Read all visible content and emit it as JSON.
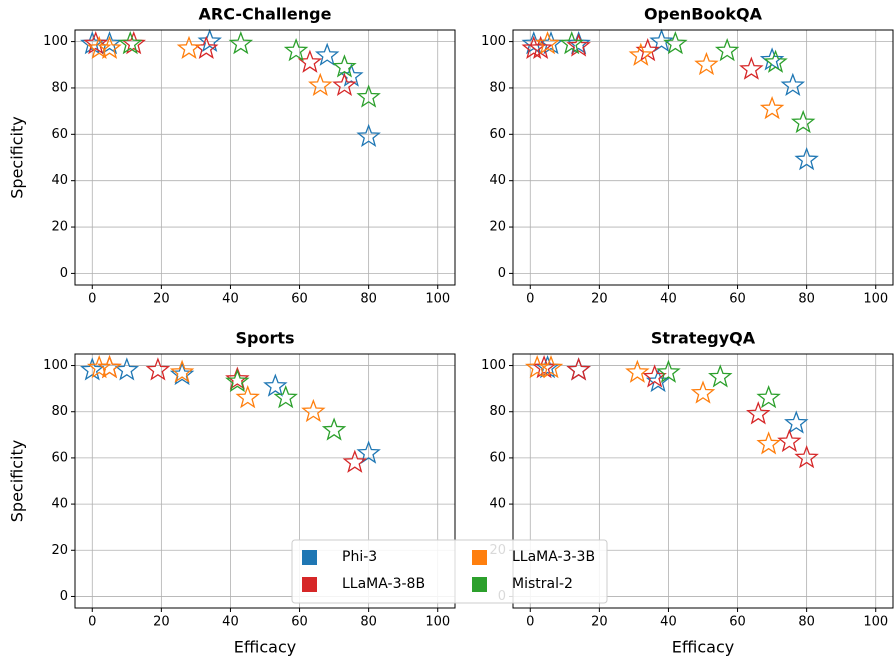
{
  "chart_data": [
    {
      "type": "scatter",
      "title": "ARC-Challenge",
      "ylabel": "Specificity",
      "legend": "lower center",
      "xlim": [
        -5,
        105
      ],
      "ylim": [
        -5,
        105
      ],
      "xticks": [
        0,
        20,
        40,
        60,
        80,
        100
      ],
      "yticks": [
        0,
        20,
        40,
        60,
        80,
        100
      ],
      "grid": true,
      "series": [
        {
          "name": "Phi-3",
          "color": "#1f77b4",
          "x": [
            0,
            5,
            34,
            68,
            75,
            80
          ],
          "values": [
            99,
            99,
            100,
            94,
            85,
            59
          ]
        },
        {
          "name": "LLaMA-3-8B",
          "color": "#d62728",
          "x": [
            1,
            12,
            33,
            63,
            73
          ],
          "values": [
            99,
            99,
            97,
            91,
            81
          ]
        },
        {
          "name": "LLaMA-3-3B",
          "color": "#ff7f0e",
          "x": [
            2,
            5,
            28,
            66
          ],
          "values": [
            97,
            97,
            97,
            81
          ]
        },
        {
          "name": "Mistral-2",
          "color": "#2ca02c",
          "x": [
            11,
            43,
            59,
            73,
            80
          ],
          "values": [
            99,
            99,
            96,
            89,
            76
          ]
        }
      ]
    },
    {
      "type": "scatter",
      "title": "OpenBookQA",
      "xlim": [
        -5,
        105
      ],
      "ylim": [
        -5,
        105
      ],
      "xticks": [
        0,
        20,
        40,
        60,
        80,
        100
      ],
      "yticks": [
        0,
        20,
        40,
        60,
        80,
        100
      ],
      "grid": true,
      "series": [
        {
          "name": "Phi-3",
          "color": "#1f77b4",
          "x": [
            1,
            6,
            14,
            38,
            70,
            76,
            80
          ],
          "values": [
            99,
            99,
            99,
            100,
            92,
            81,
            49
          ]
        },
        {
          "name": "LLaMA-3-8B",
          "color": "#d62728",
          "x": [
            1,
            3,
            14,
            34,
            64
          ],
          "values": [
            97,
            97,
            98,
            96,
            88
          ]
        },
        {
          "name": "LLaMA-3-3B",
          "color": "#ff7f0e",
          "x": [
            5,
            32,
            51,
            70
          ],
          "values": [
            99,
            94,
            90,
            71
          ]
        },
        {
          "name": "Mistral-2",
          "color": "#2ca02c",
          "x": [
            12,
            42,
            57,
            71,
            79
          ],
          "values": [
            99,
            99,
            96,
            91,
            65
          ]
        }
      ]
    },
    {
      "type": "scatter",
      "title": "Sports",
      "xlabel": "Efficacy",
      "ylabel": "Specificity",
      "xlim": [
        -5,
        105
      ],
      "ylim": [
        -5,
        105
      ],
      "xticks": [
        0,
        20,
        40,
        60,
        80,
        100
      ],
      "yticks": [
        0,
        20,
        40,
        60,
        80,
        100
      ],
      "grid": true,
      "series": [
        {
          "name": "Phi-3",
          "color": "#1f77b4",
          "x": [
            0,
            10,
            26,
            53,
            80
          ],
          "values": [
            98,
            98,
            96,
            91,
            62
          ]
        },
        {
          "name": "LLaMA-3-8B",
          "color": "#d62728",
          "x": [
            5,
            19,
            42,
            76
          ],
          "values": [
            99,
            98,
            94,
            58
          ]
        },
        {
          "name": "LLaMA-3-3B",
          "color": "#ff7f0e",
          "x": [
            2,
            5,
            26,
            45,
            64
          ],
          "values": [
            99,
            99,
            97,
            86,
            80
          ]
        },
        {
          "name": "Mistral-2",
          "color": "#2ca02c",
          "x": [
            42,
            56,
            70
          ],
          "values": [
            93,
            86,
            72
          ]
        }
      ]
    },
    {
      "type": "scatter",
      "title": "StrategyQA",
      "xlabel": "Efficacy",
      "xlim": [
        -5,
        105
      ],
      "ylim": [
        -5,
        105
      ],
      "xticks": [
        0,
        20,
        40,
        60,
        80,
        100
      ],
      "yticks": [
        0,
        20,
        40,
        60,
        80,
        100
      ],
      "grid": true,
      "series": [
        {
          "name": "Phi-3",
          "color": "#1f77b4",
          "x": [
            5,
            14,
            37,
            77
          ],
          "values": [
            99,
            98,
            93,
            75
          ]
        },
        {
          "name": "LLaMA-3-8B",
          "color": "#d62728",
          "x": [
            4,
            14,
            36,
            66,
            75,
            80
          ],
          "values": [
            99,
            98,
            95,
            79,
            67,
            60
          ]
        },
        {
          "name": "LLaMA-3-3B",
          "color": "#ff7f0e",
          "x": [
            2,
            6,
            31,
            50,
            69
          ],
          "values": [
            99,
            99,
            97,
            88,
            66
          ]
        },
        {
          "name": "Mistral-2",
          "color": "#2ca02c",
          "x": [
            40,
            55,
            69
          ],
          "values": [
            97,
            95,
            86
          ]
        }
      ]
    }
  ]
}
